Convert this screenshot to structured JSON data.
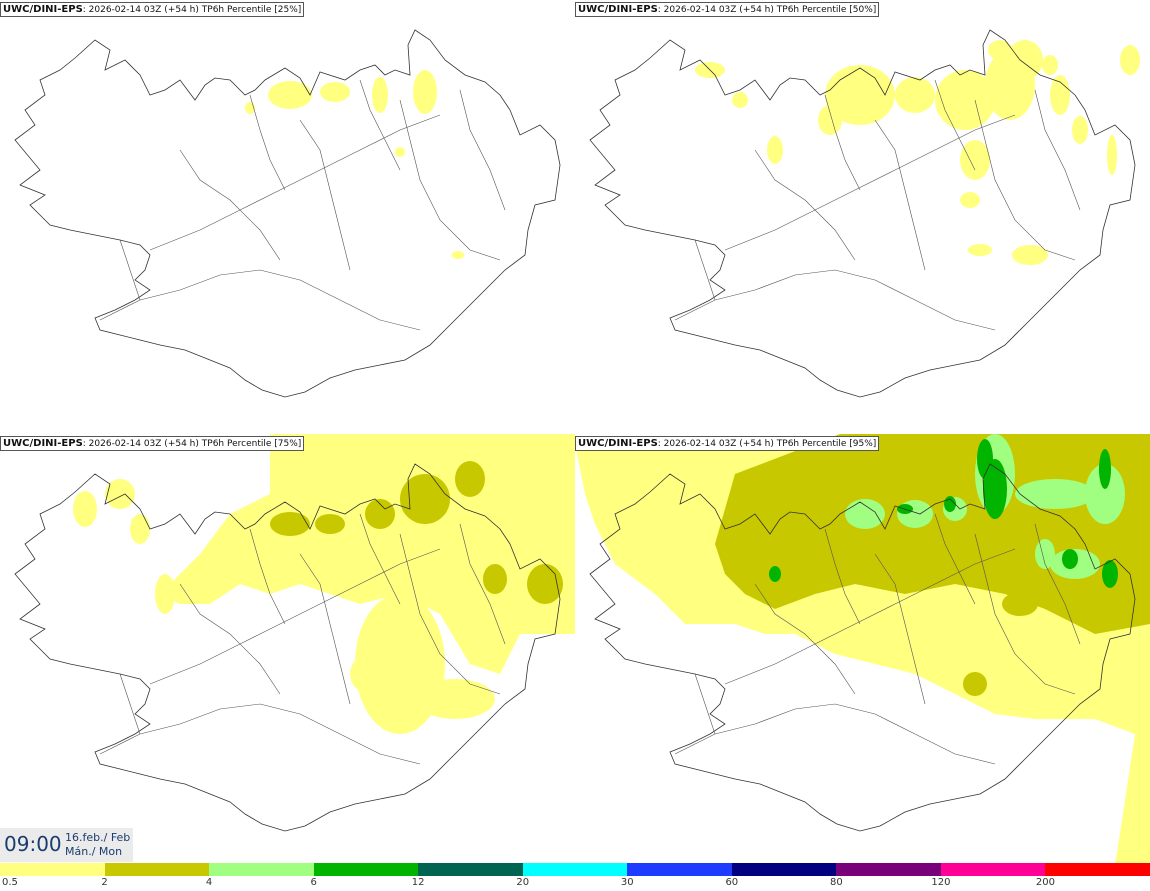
{
  "panels": [
    {
      "model": "UWC/DINI-EPS",
      "run": ": 2026-02-14 03Z (+54 h)",
      "title": "TP6h Percentile [25%]",
      "level": 1
    },
    {
      "model": "UWC/DINI-EPS",
      "run": ": 2026-02-14 03Z (+54 h)",
      "title": "TP6h Percentile [50%]",
      "level": 2
    },
    {
      "model": "UWC/DINI-EPS",
      "run": ": 2026-02-14 03Z (+54 h)",
      "title": "TP6h Percentile [75%]",
      "level": 3
    },
    {
      "model": "UWC/DINI-EPS",
      "run": ": 2026-02-14 03Z (+54 h)",
      "title": "TP6h Percentile [95%]",
      "level": 4
    }
  ],
  "valid_time": {
    "time": "09:00",
    "date_line1": "16.feb./ Feb",
    "date_line2": "Mán./ Mon"
  },
  "legend": {
    "colors": [
      "#ffff80",
      "#c8c800",
      "#a0ff80",
      "#00b400",
      "#006450",
      "#00ffff",
      "#1e3cff",
      "#000080",
      "#780078",
      "#ff0096",
      "#ff0000"
    ],
    "labels": [
      "0.5",
      "2",
      "4",
      "6",
      "12",
      "20",
      "30",
      "60",
      "80",
      "120",
      "200"
    ]
  }
}
